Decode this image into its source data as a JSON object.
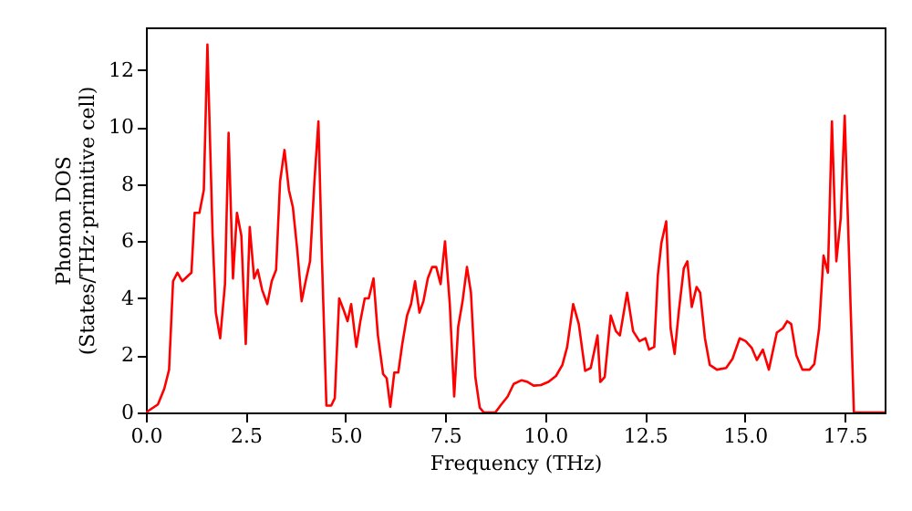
{
  "chart_data": {
    "type": "line",
    "xlabel": "Frequency (THz)",
    "ylabel": "Phonon DOS\n(States/THz·primitive cell)",
    "xlim": [
      0,
      18.5
    ],
    "ylim": [
      0,
      13.5
    ],
    "xticks": [
      {
        "value": 0,
        "label": "0.0"
      },
      {
        "value": 2.5,
        "label": "2.5"
      },
      {
        "value": 5,
        "label": "5.0"
      },
      {
        "value": 7.5,
        "label": "7.5"
      },
      {
        "value": 10,
        "label": "10.0"
      },
      {
        "value": 12.5,
        "label": "12.5"
      },
      {
        "value": 15,
        "label": "15.0"
      },
      {
        "value": 17.5,
        "label": "17.5"
      }
    ],
    "yticks": [
      0,
      2,
      4,
      6,
      8,
      10,
      12
    ],
    "grid": false,
    "marker": "none",
    "line_style": "solid",
    "series": [
      {
        "color": "#ff0000",
        "x": [
          0,
          0.3,
          0.46,
          0.58,
          0.68,
          0.79,
          0.91,
          1.06,
          1.14,
          1.22,
          1.34,
          1.45,
          1.54,
          1.67,
          1.75,
          1.86,
          1.98,
          2.07,
          2.18,
          2.28,
          2.39,
          2.5,
          2.6,
          2.71,
          2.8,
          2.91,
          3.04,
          3.15,
          3.26,
          3.36,
          3.47,
          3.58,
          3.68,
          3.79,
          3.9,
          4.0,
          4.11,
          4.22,
          4.32,
          4.41,
          4.52,
          4.64,
          4.73,
          4.84,
          4.95,
          5.05,
          5.14,
          5.27,
          5.37,
          5.48,
          5.58,
          5.7,
          5.81,
          5.94,
          6.03,
          6.12,
          6.22,
          6.32,
          6.42,
          6.54,
          6.64,
          6.74,
          6.85,
          6.95,
          7.06,
          7.17,
          7.27,
          7.38,
          7.49,
          7.61,
          7.72,
          7.82,
          7.93,
          8.04,
          8.14,
          8.25,
          8.36,
          8.46,
          8.75,
          8.9,
          9.06,
          9.21,
          9.41,
          9.56,
          9.71,
          9.89,
          10.08,
          10.27,
          10.43,
          10.55,
          10.7,
          10.84,
          11.0,
          11.14,
          11.31,
          11.38,
          11.49,
          11.64,
          11.77,
          11.87,
          12.05,
          12.2,
          12.36,
          12.51,
          12.6,
          12.73,
          12.82,
          12.91,
          13.03,
          13.14,
          13.24,
          13.35,
          13.47,
          13.56,
          13.67,
          13.79,
          13.88,
          14.0,
          14.12,
          14.3,
          14.53,
          14.69,
          14.87,
          15.02,
          15.17,
          15.3,
          15.45,
          15.6,
          15.8,
          15.95,
          16.06,
          16.16,
          16.29,
          16.44,
          16.62,
          16.74,
          16.86,
          16.97,
          17.08,
          17.18,
          17.29,
          17.4,
          17.5,
          17.73,
          18.5
        ],
        "values": [
          0,
          0.28,
          0.83,
          1.5,
          4.6,
          4.9,
          4.6,
          4.8,
          4.9,
          7.0,
          7.0,
          7.8,
          12.9,
          6.2,
          3.5,
          2.6,
          4.5,
          9.8,
          4.7,
          7.0,
          6.2,
          2.4,
          6.5,
          4.7,
          5.0,
          4.3,
          3.8,
          4.6,
          5.0,
          8.1,
          9.2,
          7.8,
          7.2,
          5.7,
          3.9,
          4.6,
          5.3,
          8.1,
          10.2,
          5.3,
          0.24,
          0.24,
          0.5,
          4.0,
          3.6,
          3.2,
          3.8,
          2.3,
          3.2,
          4.0,
          4.0,
          4.7,
          2.7,
          1.35,
          1.2,
          0.2,
          1.4,
          1.4,
          2.4,
          3.4,
          3.8,
          4.6,
          3.5,
          3.9,
          4.7,
          5.1,
          5.1,
          4.5,
          6.0,
          3.8,
          0.56,
          3.0,
          3.9,
          5.1,
          4.2,
          1.24,
          0.17,
          0,
          0,
          0.28,
          0.56,
          1.0,
          1.13,
          1.07,
          0.94,
          0.96,
          1.07,
          1.28,
          1.67,
          2.3,
          3.8,
          3.1,
          1.46,
          1.56,
          2.7,
          1.07,
          1.24,
          3.4,
          2.85,
          2.7,
          4.2,
          2.85,
          2.5,
          2.6,
          2.2,
          2.3,
          4.8,
          5.95,
          6.7,
          2.95,
          2.05,
          3.6,
          5.05,
          5.3,
          3.7,
          4.4,
          4.2,
          2.6,
          1.67,
          1.5,
          1.56,
          1.88,
          2.6,
          2.5,
          2.27,
          1.84,
          2.2,
          1.5,
          2.8,
          2.95,
          3.2,
          3.1,
          2.0,
          1.5,
          1.5,
          1.7,
          2.95,
          5.5,
          4.9,
          10.2,
          5.3,
          6.8,
          10.4,
          0,
          0
        ]
      }
    ]
  }
}
